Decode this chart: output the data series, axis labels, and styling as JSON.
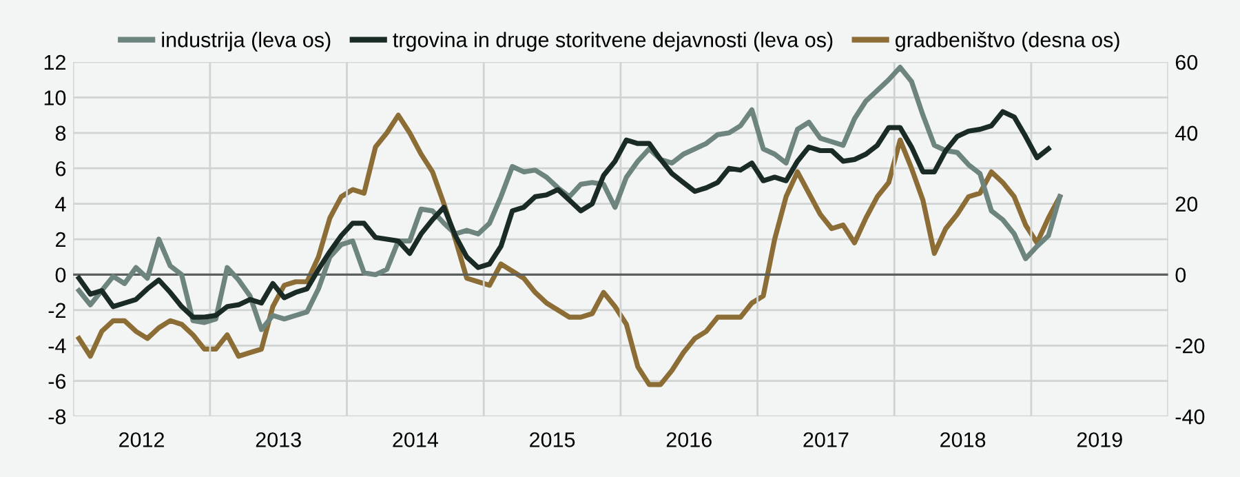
{
  "chart_data": {
    "type": "line",
    "x": [
      "2012-01",
      "2012-02",
      "2012-03",
      "2012-04",
      "2012-05",
      "2012-06",
      "2012-07",
      "2012-08",
      "2012-09",
      "2012-10",
      "2012-11",
      "2012-12",
      "2013-01",
      "2013-02",
      "2013-03",
      "2013-04",
      "2013-05",
      "2013-06",
      "2013-07",
      "2013-08",
      "2013-09",
      "2013-10",
      "2013-11",
      "2013-12",
      "2014-01",
      "2014-02",
      "2014-03",
      "2014-04",
      "2014-05",
      "2014-06",
      "2014-07",
      "2014-08",
      "2014-09",
      "2014-10",
      "2014-11",
      "2014-12",
      "2015-01",
      "2015-02",
      "2015-03",
      "2015-04",
      "2015-05",
      "2015-06",
      "2015-07",
      "2015-08",
      "2015-09",
      "2015-10",
      "2015-11",
      "2015-12",
      "2016-01",
      "2016-02",
      "2016-03",
      "2016-04",
      "2016-05",
      "2016-06",
      "2016-07",
      "2016-08",
      "2016-09",
      "2016-10",
      "2016-11",
      "2016-12",
      "2017-01",
      "2017-02",
      "2017-03",
      "2017-04",
      "2017-05",
      "2017-06",
      "2017-07",
      "2017-08",
      "2017-09",
      "2017-10",
      "2017-11",
      "2017-12",
      "2018-01",
      "2018-02",
      "2018-03",
      "2018-04",
      "2018-05",
      "2018-06",
      "2018-07",
      "2018-08",
      "2018-09",
      "2018-10",
      "2018-11",
      "2018-12",
      "2019-01",
      "2019-02",
      "2019-03"
    ],
    "series": [
      {
        "name": "industrija (leva os)",
        "color": "#6e857f",
        "values": [
          -0.9,
          -1.7,
          -0.9,
          -0.1,
          -0.5,
          0.4,
          -0.2,
          2.0,
          0.5,
          0.0,
          -2.6,
          -2.7,
          -2.5,
          0.4,
          -0.3,
          -1.2,
          -3.1,
          -2.3,
          -2.5,
          -2.3,
          -2.1,
          -0.8,
          1.0,
          1.7,
          1.9,
          0.1,
          0.0,
          0.3,
          1.9,
          1.9,
          3.7,
          3.6,
          2.9,
          2.3,
          2.5,
          2.3,
          2.9,
          4.4,
          6.1,
          5.8,
          5.9,
          5.5,
          4.9,
          4.4,
          5.1,
          5.2,
          5.1,
          3.8,
          5.5,
          6.4,
          7.1,
          6.5,
          6.3,
          6.8,
          7.1,
          7.4,
          7.9,
          8.0,
          8.4,
          9.3,
          7.1,
          6.8,
          6.3,
          8.2,
          8.6,
          7.7,
          7.5,
          7.3,
          8.8,
          9.8,
          10.4,
          11.0,
          11.7,
          10.9,
          9.0,
          7.3,
          7.0,
          6.9,
          6.2,
          5.7,
          3.6,
          3.1,
          2.3,
          0.9,
          1.6,
          2.2,
          4.4
        ]
      },
      {
        "name": "trgovina in druge storitvene dejavnosti (leva os)",
        "color": "#1a2b26",
        "values": [
          -0.2,
          -1.1,
          -0.9,
          -1.8,
          -1.6,
          -1.4,
          -0.8,
          -0.3,
          -1.0,
          -1.8,
          -2.4,
          -2.4,
          -2.3,
          -1.8,
          -1.7,
          -1.4,
          -1.6,
          -0.5,
          -1.3,
          -1.0,
          -0.8,
          0.3,
          1.3,
          2.2,
          2.9,
          2.9,
          2.1,
          2.0,
          1.9,
          1.2,
          2.3,
          3.1,
          3.8,
          2.2,
          1.0,
          0.4,
          0.6,
          1.6,
          3.6,
          3.8,
          4.4,
          4.5,
          4.8,
          4.2,
          3.6,
          4.0,
          5.6,
          6.4,
          7.6,
          7.4,
          7.4,
          6.5,
          5.7,
          5.2,
          4.7,
          4.9,
          5.2,
          6.0,
          5.9,
          6.3,
          5.3,
          5.5,
          5.3,
          6.4,
          7.2,
          7.0,
          7.0,
          6.4,
          6.5,
          6.8,
          7.3,
          8.3,
          8.3,
          7.2,
          5.8,
          5.8,
          7.0,
          7.8,
          8.1,
          8.2,
          8.4,
          9.2,
          8.9,
          7.8,
          6.6,
          7.1,
          null
        ]
      },
      {
        "name": "gradbeništvo (desna os)",
        "color": "#8c6d35",
        "axis": "y2",
        "values": [
          -18,
          -23,
          -16,
          -13,
          -13,
          -16,
          -18,
          -15,
          -13,
          -14,
          -17,
          -21,
          -21,
          -17,
          -23,
          -22,
          -21,
          -9,
          -3,
          -2,
          -2,
          5,
          16,
          22,
          24,
          23,
          36,
          40,
          45,
          40,
          34,
          29,
          20,
          10,
          -1,
          -2,
          -3,
          3,
          1,
          -1,
          -5,
          -8,
          -10,
          -12,
          -12,
          -11,
          -5,
          -9,
          -14,
          -26,
          -31,
          -31,
          -27,
          -22,
          -18,
          -16,
          -12,
          -12,
          -12,
          -8,
          -6,
          10,
          22,
          29,
          23,
          17,
          13,
          14,
          9,
          16,
          22,
          26,
          38,
          30,
          21,
          6,
          13,
          17,
          22,
          23,
          29,
          26,
          22,
          14,
          9,
          16,
          22
        ]
      }
    ],
    "xlim": [
      "2011-12-16",
      "2019-12-16"
    ],
    "xticks": [
      {
        "value": "2012-06-16",
        "label": "2012"
      },
      {
        "value": "2013-06-16",
        "label": "2013"
      },
      {
        "value": "2014-06-16",
        "label": "2014"
      },
      {
        "value": "2015-06-16",
        "label": "2015"
      },
      {
        "value": "2016-06-16",
        "label": "2016"
      },
      {
        "value": "2017-06-16",
        "label": "2017"
      },
      {
        "value": "2018-06-16",
        "label": "2018"
      },
      {
        "value": "2019-06-16",
        "label": "2019"
      }
    ],
    "ylim": [
      -8,
      12
    ],
    "yticks": [
      -8,
      -6,
      -4,
      -2,
      0,
      2,
      4,
      6,
      8,
      10,
      12
    ],
    "y2lim": [
      -40,
      60
    ],
    "y2ticks": [
      -40,
      -20,
      0,
      20,
      40,
      60
    ],
    "ref_lines": [
      {
        "axis": "y",
        "value": 0,
        "color": "#5a5f5d"
      }
    ],
    "grid": true,
    "legend": "top",
    "marker": "none",
    "line_style": "solid"
  }
}
